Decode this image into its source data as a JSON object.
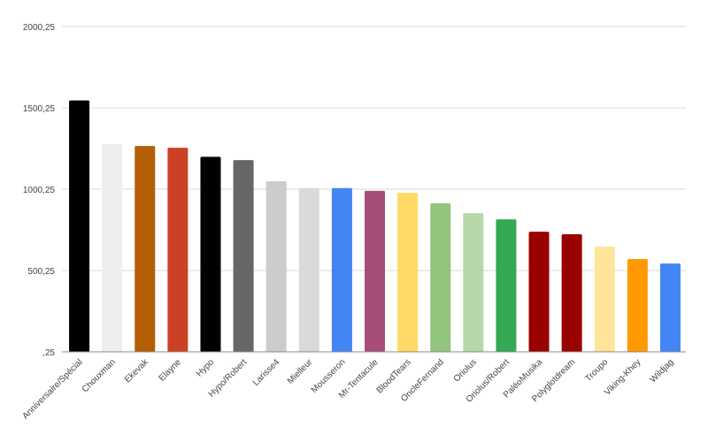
{
  "chart_data": {
    "type": "bar",
    "title": "",
    "xlabel": "",
    "ylabel": "",
    "ylim": [
      0.25,
      2000.25
    ],
    "yticks": [
      0.25,
      500.25,
      1000.25,
      1500.25,
      2000.25
    ],
    "ytick_labels": [
      ",25",
      "500,25",
      "1000,25",
      "1500,25",
      "2000,25"
    ],
    "grid": true,
    "legend": "none",
    "categories": [
      "Anniversaire/Spécial",
      "Chouxman",
      "Ekevak",
      "Elayne",
      "Hypo",
      "Hypo/Robert",
      "Larisse4",
      "Mielleur",
      "Mousseron",
      "Mr-Tentacule",
      "BloodTears",
      "OncleFernand",
      "Oriolus",
      "Oriolus/Robert",
      "PaléoMusika",
      "Polyglotdream",
      "Troupo",
      "Viking-Khey",
      "Wildjag"
    ],
    "values": [
      1546,
      1277,
      1266,
      1255,
      1199,
      1179,
      1049,
      1007,
      1007,
      990,
      978,
      913,
      853,
      815,
      739,
      723,
      647,
      571,
      543
    ],
    "colors": [
      "#000000",
      "#eeeeee",
      "#b45f06",
      "#cc4125",
      "#000000",
      "#666666",
      "#cccccc",
      "#d9d9d9",
      "#4285f4",
      "#a64d79",
      "#ffd966",
      "#93c47d",
      "#b6d7a8",
      "#34a853",
      "#990000",
      "#990000",
      "#ffe599",
      "#ff9900",
      "#4285f4"
    ]
  }
}
